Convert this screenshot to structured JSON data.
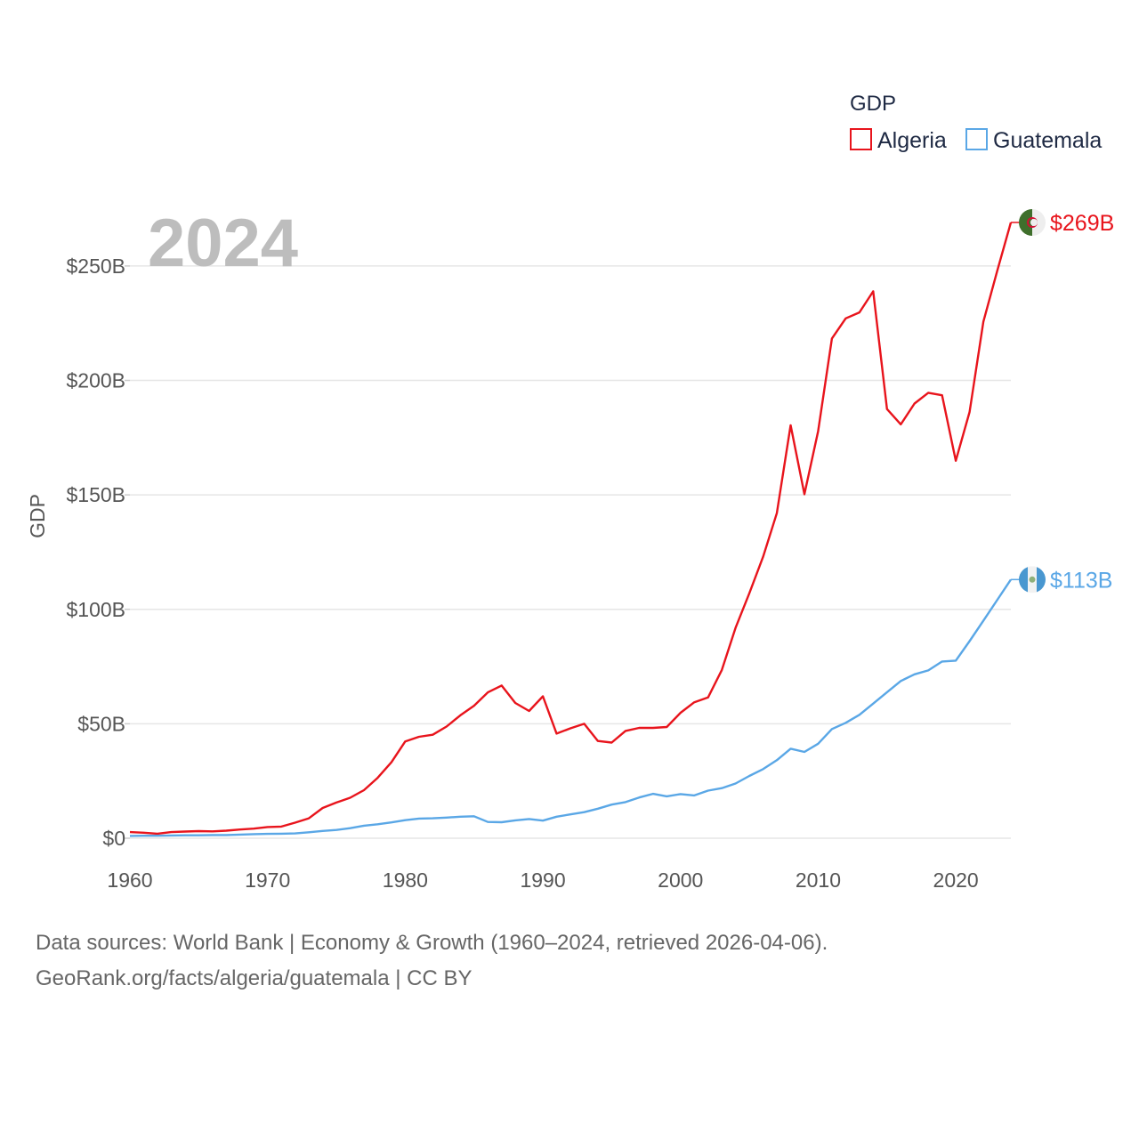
{
  "chart_data": {
    "type": "line",
    "title": "",
    "legend_title": "GDP",
    "year_label": "2024",
    "xlabel": "",
    "ylabel": "GDP",
    "xlim": [
      1960,
      2024
    ],
    "ylim": [
      0,
      269
    ],
    "x_ticks": [
      1960,
      1970,
      1980,
      1990,
      2000,
      2010,
      2020
    ],
    "x_tick_labels": [
      "1960",
      "1970",
      "1980",
      "1990",
      "2000",
      "2010",
      "2020"
    ],
    "y_ticks": [
      0,
      50,
      100,
      150,
      200,
      250
    ],
    "y_tick_labels": [
      "$0",
      "$50B",
      "$100B",
      "$150B",
      "$200B",
      "$250B"
    ],
    "grid": true,
    "legend_position": "top-right",
    "x": [
      1960,
      1961,
      1962,
      1963,
      1964,
      1965,
      1966,
      1967,
      1968,
      1969,
      1970,
      1971,
      1972,
      1973,
      1974,
      1975,
      1976,
      1977,
      1978,
      1979,
      1980,
      1981,
      1982,
      1983,
      1984,
      1985,
      1986,
      1987,
      1988,
      1989,
      1990,
      1991,
      1992,
      1993,
      1994,
      1995,
      1996,
      1997,
      1998,
      1999,
      2000,
      2001,
      2002,
      2003,
      2004,
      2005,
      2006,
      2007,
      2008,
      2009,
      2010,
      2011,
      2012,
      2013,
      2014,
      2015,
      2016,
      2017,
      2018,
      2019,
      2020,
      2021,
      2022,
      2023,
      2024
    ],
    "series": [
      {
        "name": "Algeria",
        "color": "#e8141c",
        "end_label": "$269B",
        "flag_icon": "algeria-flag-icon",
        "values": [
          2.7,
          2.4,
          2.0,
          2.7,
          2.9,
          3.1,
          3.0,
          3.3,
          3.8,
          4.2,
          4.9,
          5.1,
          6.8,
          8.7,
          13.2,
          15.6,
          17.7,
          21.0,
          26.4,
          33.2,
          42.3,
          44.3,
          45.2,
          48.8,
          53.7,
          57.9,
          63.7,
          66.7,
          59.1,
          55.6,
          62.0,
          45.7,
          48.0,
          50.0,
          42.5,
          41.8,
          46.9,
          48.2,
          48.2,
          48.6,
          54.8,
          59.4,
          61.5,
          73.5,
          91.9,
          107.0,
          123.0,
          142.0,
          180.4,
          150.3,
          177.8,
          218.3,
          227.1,
          229.7,
          238.9,
          187.5,
          180.8,
          189.9,
          194.6,
          193.5,
          164.9,
          186.2,
          225.6,
          247.6,
          269.0
        ]
      },
      {
        "name": "Guatemala",
        "color": "#5aa7e6",
        "end_label": "$113B",
        "flag_icon": "guatemala-flag-icon",
        "values": [
          1.0,
          1.1,
          1.1,
          1.2,
          1.3,
          1.3,
          1.4,
          1.4,
          1.6,
          1.8,
          1.9,
          2.0,
          2.1,
          2.6,
          3.2,
          3.6,
          4.4,
          5.5,
          6.1,
          6.9,
          7.9,
          8.6,
          8.7,
          9.0,
          9.4,
          9.6,
          7.1,
          7.0,
          7.8,
          8.4,
          7.7,
          9.4,
          10.4,
          11.4,
          12.9,
          14.7,
          15.8,
          17.8,
          19.4,
          18.3,
          19.3,
          18.7,
          20.8,
          21.9,
          23.9,
          27.2,
          30.2,
          34.1,
          39.1,
          37.7,
          41.3,
          47.7,
          50.4,
          53.9,
          58.8,
          63.8,
          68.7,
          71.6,
          73.3,
          77.2,
          77.6,
          86.1,
          95.0,
          104.0,
          113.0
        ]
      }
    ]
  },
  "footer": {
    "line1": "Data sources: World Bank | Economy & Growth (1960–2024, retrieved 2026-04-06).",
    "line2": "GeoRank.org/facts/algeria/guatemala | CC BY"
  }
}
